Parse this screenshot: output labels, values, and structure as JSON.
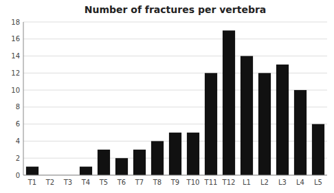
{
  "chart_data": {
    "type": "bar",
    "title": "Number of fractures per vertebra",
    "categories": [
      "T1",
      "T2",
      "T3",
      "T4",
      "T5",
      "T6",
      "T7",
      "T8",
      "T9",
      "T10",
      "T11",
      "T12",
      "L1",
      "L2",
      "L3",
      "L4",
      "L5"
    ],
    "values": [
      1,
      0,
      0,
      1,
      3,
      2,
      3,
      4,
      5,
      5,
      12,
      17,
      14,
      12,
      13,
      10,
      6
    ],
    "color": "#111111",
    "ylim": [
      0,
      18
    ],
    "yticks": [
      0,
      2,
      4,
      6,
      8,
      10,
      12,
      14,
      16,
      18
    ],
    "grid": true
  }
}
